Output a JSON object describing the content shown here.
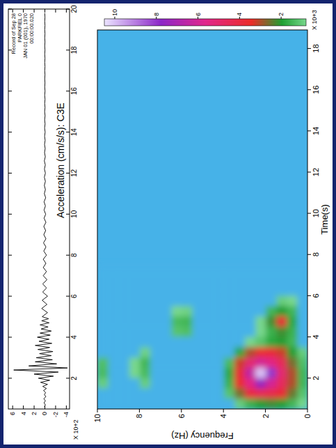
{
  "chart_data": [
    {
      "type": "line",
      "title": "Acceleration (cm/s/s): C3E",
      "annotations": [
        "Record of Sep 28",
        "PARKFIEL 0",
        "JAN 01 (001), 1970",
        "00:00:00.020"
      ],
      "scale_label": "X 10+2",
      "color": "#000000",
      "xlim": [
        0.5,
        20
      ],
      "xticks": [
        2,
        4,
        6,
        8,
        10,
        12,
        14,
        16,
        18,
        20
      ],
      "ylim": [
        -4.6,
        6.8
      ],
      "yticks": [
        -4,
        -2,
        0,
        2,
        4,
        6
      ],
      "x": [
        0.6,
        0.7,
        0.8,
        0.9,
        1.0,
        1.1,
        1.2,
        1.3,
        1.4,
        1.5,
        1.6,
        1.7,
        1.8,
        1.9,
        2.0,
        2.1,
        2.2,
        2.3,
        2.4,
        2.5,
        2.6,
        2.7,
        2.8,
        2.9,
        3.0,
        3.1,
        3.2,
        3.3,
        3.4,
        3.5,
        3.6,
        3.7,
        3.8,
        3.9,
        4.0,
        4.1,
        4.2,
        4.3,
        4.4,
        4.5,
        4.6,
        4.7,
        4.8,
        4.9,
        5.0,
        5.2,
        5.4,
        5.6,
        5.8,
        6.0,
        6.2,
        6.4,
        6.6,
        6.8,
        7.0,
        7.2,
        7.4,
        7.6,
        7.8,
        8.0,
        8.2,
        8.4,
        8.6,
        8.8,
        9.0,
        9.2,
        9.4,
        9.6,
        9.8,
        10.0,
        10.2,
        10.4,
        10.6,
        10.8,
        11.0,
        11.2,
        11.4,
        11.6,
        11.8,
        12.0,
        12.2,
        12.4,
        12.6,
        12.8,
        13.0,
        13.2,
        13.4,
        13.6,
        13.8,
        14.0,
        14.2,
        14.4,
        14.6,
        14.8,
        15.0,
        15.2,
        15.4,
        15.6,
        15.8,
        16.0,
        16.2,
        16.4,
        16.6,
        16.8,
        17.0,
        17.2,
        17.4,
        17.6,
        17.8,
        18.0,
        18.2,
        18.4,
        18.6,
        18.8,
        19.0,
        19.2,
        19.4,
        19.6,
        19.8
      ],
      "values": [
        0.1,
        -0.1,
        0.15,
        -0.1,
        0.2,
        -0.2,
        0.1,
        -0.15,
        0.25,
        -0.3,
        0.4,
        -0.5,
        0.8,
        -0.9,
        1.2,
        -1.6,
        2.0,
        -2.5,
        5.8,
        -4.2,
        3.0,
        -2.2,
        1.8,
        -1.4,
        1.6,
        -1.2,
        1.0,
        -1.5,
        1.3,
        -0.9,
        1.8,
        -1.3,
        1.1,
        -0.8,
        1.4,
        -1.0,
        0.9,
        -1.2,
        0.7,
        -0.6,
        0.9,
        -0.8,
        0.6,
        -0.7,
        0.5,
        -0.5,
        0.6,
        -0.4,
        0.5,
        -0.5,
        0.4,
        -0.3,
        0.4,
        -0.4,
        0.3,
        -0.3,
        0.3,
        -0.2,
        0.3,
        -0.3,
        0.2,
        -0.2,
        0.25,
        -0.2,
        0.2,
        -0.15,
        0.2,
        -0.2,
        0.15,
        -0.15,
        0.15,
        -0.1,
        0.15,
        -0.15,
        0.1,
        -0.1,
        0.1,
        -0.1,
        0.1,
        -0.1,
        0.08,
        -0.08,
        0.1,
        -0.08,
        0.06,
        -0.06,
        0.06,
        -0.05,
        0.05,
        -0.05,
        0.05,
        -0.04,
        0.04,
        -0.04,
        0.04,
        -0.03,
        0.03,
        -0.03,
        0.03,
        -0.03,
        0.02,
        -0.02,
        0.02,
        -0.02,
        0.02,
        -0.02,
        0.02,
        -0.02,
        0.02,
        -0.02,
        0.02,
        -0.02,
        0.02,
        -0.02,
        0.02,
        -0.02,
        0.02,
        -0.02,
        0.02
      ]
    },
    {
      "type": "heatmap",
      "xlabel": "Time(s)",
      "ylabel": "Frequency (Hz)",
      "xlim": [
        0.5,
        18.9
      ],
      "xticks": [
        2,
        4,
        6,
        8,
        10,
        12,
        14,
        16,
        18
      ],
      "ylim": [
        0,
        10
      ],
      "yticks": [
        0,
        2,
        4,
        6,
        8,
        10
      ],
      "x": [
        0.75,
        1.25,
        1.75,
        2.25,
        2.75,
        3.25,
        3.75,
        4.25,
        4.75,
        5.25,
        5.75,
        6.25,
        6.75,
        7.25
      ],
      "y": [
        0.25,
        0.75,
        1.25,
        1.75,
        2.25,
        2.75,
        3.25,
        3.75,
        4.25,
        4.75,
        5.25,
        5.75,
        6.25,
        6.75,
        7.25,
        7.75,
        8.25,
        8.75,
        9.25,
        9.75
      ],
      "cells": [
        [
          0.8,
          1.2,
          1.5,
          1.5,
          1.3,
          1.0,
          0.6,
          0.5,
          0.6,
          0.5,
          0.3,
          0.4,
          0.3,
          0
        ],
        [
          1.5,
          2.5,
          3.0,
          3.0,
          2.6,
          2.0,
          1.5,
          1.6,
          1.8,
          1.5,
          0.8,
          0.6,
          0.4,
          0.2
        ],
        [
          2.0,
          3.8,
          4.6,
          5.0,
          4.5,
          3.2,
          2.0,
          2.2,
          3.8,
          2.0,
          1.0,
          0.5,
          0.3,
          0
        ],
        [
          2.2,
          4.2,
          6.0,
          8.0,
          5.5,
          3.8,
          1.8,
          1.6,
          2.2,
          1.5,
          0.6,
          0.3,
          0,
          0
        ],
        [
          2.0,
          4.4,
          7.5,
          10.0,
          6.0,
          3.6,
          1.2,
          0.8,
          0.8,
          0.6,
          0,
          0,
          0,
          0
        ],
        [
          1.6,
          4.0,
          5.5,
          6.5,
          5.0,
          3.0,
          0.8,
          0,
          0,
          0,
          0,
          0,
          0,
          0
        ],
        [
          1.0,
          2.6,
          3.6,
          3.8,
          3.2,
          1.8,
          0.3,
          0,
          0,
          0,
          0,
          0,
          0,
          0
        ],
        [
          0.3,
          1.2,
          1.6,
          1.8,
          1.4,
          0.6,
          0,
          0,
          0,
          0,
          0,
          0,
          0,
          0
        ],
        [
          0,
          0,
          0,
          0,
          0,
          0,
          0,
          0,
          0,
          0,
          0,
          0,
          0,
          0
        ],
        [
          0,
          0,
          0,
          0,
          0,
          0,
          0,
          0,
          0,
          0,
          0,
          0,
          0,
          0
        ],
        [
          0,
          0,
          0,
          0,
          0,
          0,
          0,
          0,
          0,
          0,
          0,
          0,
          0,
          0
        ],
        [
          0,
          0,
          0,
          0,
          0,
          0,
          0.6,
          1.3,
          1.5,
          0.9,
          0,
          0,
          0,
          0
        ],
        [
          0,
          0,
          0,
          0,
          0,
          0,
          0.5,
          1.2,
          1.4,
          0.8,
          0,
          0,
          0,
          0
        ],
        [
          0,
          0,
          0,
          0,
          0,
          0,
          0,
          0,
          0,
          0,
          0,
          0,
          0,
          0
        ],
        [
          0,
          0,
          0.5,
          0.6,
          0.6,
          0.4,
          0,
          0,
          0,
          0,
          0,
          0,
          0,
          0
        ],
        [
          0,
          0,
          1.0,
          1.4,
          1.5,
          0.9,
          0,
          0,
          0,
          0,
          0,
          0,
          0,
          0
        ],
        [
          0,
          0,
          0.6,
          0.8,
          0.8,
          0.5,
          0,
          0,
          0,
          0,
          0,
          0,
          0,
          0
        ],
        [
          0,
          0,
          0,
          0,
          0,
          0,
          0,
          0,
          0,
          0,
          0,
          0,
          0,
          0
        ],
        [
          0,
          0,
          0.4,
          0.6,
          0.5,
          0,
          0,
          0,
          0,
          0,
          0,
          0,
          0,
          0
        ],
        [
          0,
          0,
          1.0,
          1.4,
          1.3,
          0.5,
          0,
          0,
          0,
          0,
          0,
          0,
          0,
          0
        ]
      ],
      "colorbar": {
        "range": [
          0.8,
          10.5
        ],
        "ticks": [
          2,
          4,
          6,
          8,
          10
        ],
        "label": "X 10+3"
      }
    }
  ]
}
